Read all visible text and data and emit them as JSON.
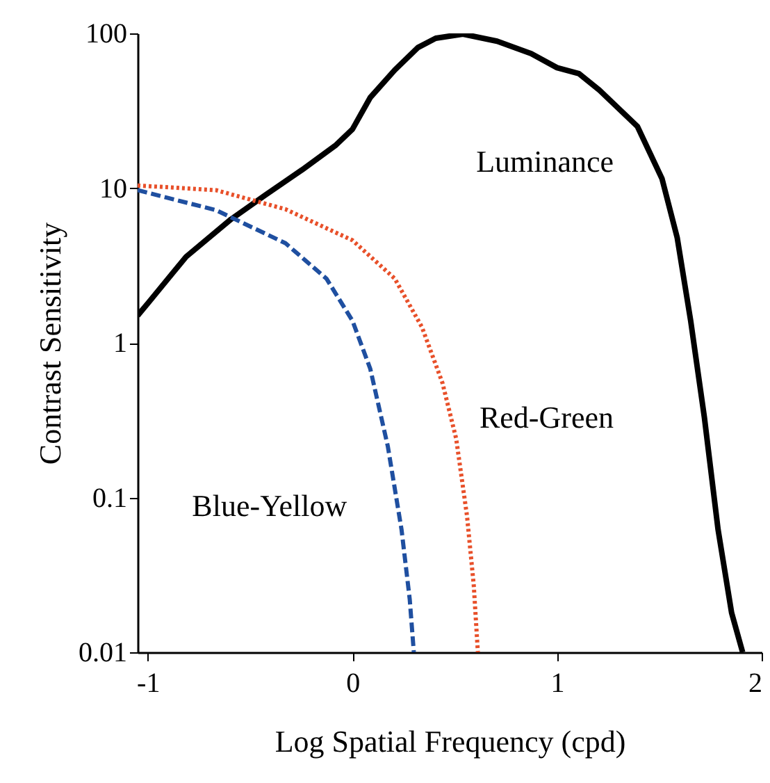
{
  "chart_data": {
    "type": "line",
    "xlabel": "Log Spatial Frequency (cpd)",
    "ylabel": "Contrast Sensitivity",
    "log": "y",
    "grid": false,
    "legend": false,
    "xlim": [
      -1.05,
      2
    ],
    "xticks": [
      -1,
      0,
      1,
      2
    ],
    "ylim": [
      0.01,
      100
    ],
    "yticks": [
      0.01,
      0.1,
      1,
      10,
      100
    ],
    "series": [
      {
        "name": "Luminance",
        "color": "#000000",
        "line_style": "solid",
        "x": [
          -1.05,
          -1,
          -0.813,
          -0.593,
          -0.427,
          -0.247,
          -0.08,
          0,
          0.087,
          0.207,
          0.32,
          0.407,
          0.54,
          0.707,
          0.873,
          1.0,
          1.107,
          1.207,
          1.393,
          1.513,
          1.587,
          1.653,
          1.72,
          1.787,
          1.853,
          1.907
        ],
        "values": [
          1.5,
          1.8,
          3.6,
          6.3,
          9.0,
          13.1,
          19,
          24,
          38.5,
          58,
          81,
          93,
          99,
          89,
          74,
          60,
          55,
          43,
          25,
          11.5,
          4.8,
          1.39,
          0.33,
          0.062,
          0.018,
          0.01
        ]
      },
      {
        "name": "Red-Green",
        "color": "#e8502a",
        "line_style": "dotted",
        "x": [
          -1.05,
          -0.667,
          -0.327,
          0,
          0.207,
          0.34,
          0.44,
          0.507,
          0.56,
          0.593,
          0.613
        ],
        "values": [
          10.4,
          9.7,
          7.3,
          4.6,
          2.6,
          1.26,
          0.55,
          0.24,
          0.076,
          0.027,
          0.01
        ]
      },
      {
        "name": "Blue-Yellow",
        "color": "#1f4fa0",
        "line_style": "dashed",
        "x": [
          -1.05,
          -0.667,
          -0.327,
          -0.127,
          0,
          0.087,
          0.173,
          0.24,
          0.28,
          0.3
        ],
        "values": [
          9.7,
          7.2,
          4.4,
          2.6,
          1.39,
          0.68,
          0.214,
          0.062,
          0.022,
          0.01
        ]
      }
    ]
  }
}
